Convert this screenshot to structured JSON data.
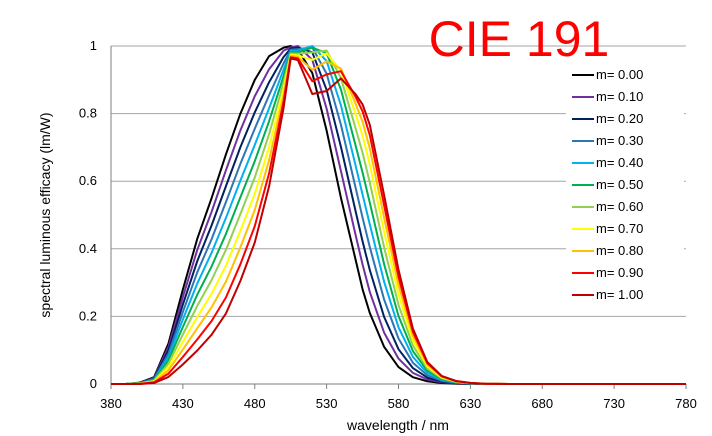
{
  "overlay_title": {
    "text": "CIE 191",
    "color": "#ff0000"
  },
  "chart_data": {
    "type": "line",
    "xlabel": "wavelength / nm",
    "ylabel": "spectral luminous efficacy (lm/W)",
    "xlim": [
      380,
      780
    ],
    "ylim": [
      0,
      1
    ],
    "xticks": [
      380,
      430,
      480,
      530,
      580,
      630,
      680,
      730,
      780
    ],
    "yticks": [
      0,
      0.2,
      0.4,
      0.6,
      0.8,
      1
    ],
    "ytick_labels": [
      "0",
      "0.2",
      "0.4",
      "0.6",
      "0.8",
      "1"
    ],
    "grid": "horizontal",
    "legend_position": "right",
    "x": [
      380,
      390,
      400,
      410,
      420,
      430,
      440,
      450,
      460,
      470,
      480,
      490,
      500,
      505,
      510,
      520,
      530,
      540,
      550,
      555,
      560,
      570,
      580,
      590,
      600,
      610,
      620,
      630,
      640,
      650,
      660,
      670,
      680,
      690,
      700,
      710,
      720,
      730,
      740,
      750,
      760,
      770,
      780
    ],
    "series": [
      {
        "name": "m= 0.00",
        "color": "#000000",
        "values": [
          0,
          0,
          0.004,
          0.02,
          0.12,
          0.28,
          0.43,
          0.55,
          0.68,
          0.8,
          0.9,
          0.97,
          0.995,
          1.0,
          0.99,
          0.92,
          0.75,
          0.55,
          0.37,
          0.28,
          0.21,
          0.11,
          0.05,
          0.02,
          0.008,
          0.003,
          0.001,
          0,
          0,
          0,
          0,
          0,
          0,
          0,
          0,
          0,
          0,
          0,
          0,
          0,
          0,
          0,
          0
        ]
      },
      {
        "name": "m= 0.10",
        "color": "#7030a0",
        "values": [
          0,
          0,
          0.0036,
          0.0183,
          0.1101,
          0.2578,
          0.3969,
          0.5096,
          0.6329,
          0.7505,
          0.8519,
          0.9315,
          0.9861,
          0.9963,
          1.0,
          0.9593,
          0.8147,
          0.6294,
          0.4431,
          0.3532,
          0.2724,
          0.1521,
          0.0751,
          0.0328,
          0.0132,
          0.005,
          0.0018,
          0.0006,
          0.0002,
          0,
          0,
          0,
          0,
          0,
          0,
          0,
          0,
          0,
          0,
          0,
          0,
          0,
          0
        ]
      },
      {
        "name": "m= 0.20",
        "color": "#002060",
        "values": [
          0,
          0,
          0.0032,
          0.0166,
          0.1002,
          0.2356,
          0.3638,
          0.4692,
          0.5858,
          0.701,
          0.8038,
          0.893,
          0.9672,
          0.9926,
          0.9954,
          0.9815,
          0.8704,
          0.7008,
          0.5137,
          0.4215,
          0.3373,
          0.1986,
          0.1031,
          0.0469,
          0.019,
          0.0073,
          0.0027,
          0.0009,
          0.0003,
          0,
          0,
          0,
          0,
          0,
          0,
          0,
          0,
          0,
          0,
          0,
          0,
          0,
          0
        ]
      },
      {
        "name": "m= 0.30",
        "color": "#2e75b6",
        "values": [
          0,
          0,
          0.0028,
          0.0149,
          0.0903,
          0.2134,
          0.3307,
          0.4288,
          0.5387,
          0.6515,
          0.7557,
          0.8545,
          0.9483,
          0.9889,
          0.9908,
          0.9956,
          0.9183,
          0.7663,
          0.5831,
          0.4917,
          0.4051,
          0.2501,
          0.1345,
          0.0631,
          0.0256,
          0.0097,
          0.0036,
          0.0013,
          0.0004,
          0.0001,
          0,
          0,
          0,
          0,
          0,
          0,
          0,
          0,
          0,
          0,
          0,
          0,
          0
        ]
      },
      {
        "name": "m= 0.40",
        "color": "#00b0f0",
        "values": [
          0,
          0,
          0.0024,
          0.0132,
          0.0804,
          0.1912,
          0.2976,
          0.3884,
          0.4916,
          0.602,
          0.7076,
          0.816,
          0.9294,
          0.9852,
          0.9862,
          1.0,
          0.9555,
          0.8237,
          0.6485,
          0.5605,
          0.4722,
          0.3027,
          0.1677,
          0.0802,
          0.0325,
          0.0122,
          0.0045,
          0.0016,
          0.0005,
          0.0001,
          0,
          0,
          0,
          0,
          0,
          0,
          0,
          0,
          0,
          0,
          0,
          0,
          0
        ]
      },
      {
        "name": "m= 0.50",
        "color": "#00b050",
        "values": [
          0,
          0,
          0.002,
          0.0115,
          0.0705,
          0.169,
          0.2645,
          0.348,
          0.4445,
          0.5525,
          0.6595,
          0.7775,
          0.9105,
          0.9815,
          0.9816,
          0.995,
          0.979,
          0.8705,
          0.7077,
          0.6252,
          0.5363,
          0.3546,
          0.2013,
          0.0973,
          0.0394,
          0.0148,
          0.0055,
          0.002,
          0.0006,
          0.0002,
          0,
          0,
          0,
          0,
          0,
          0,
          0,
          0,
          0,
          0,
          0,
          0,
          0
        ]
      },
      {
        "name": "m= 0.60",
        "color": "#92d050",
        "values": [
          0,
          0,
          0.0016,
          0.0098,
          0.0606,
          0.1468,
          0.2314,
          0.3076,
          0.3974,
          0.503,
          0.6114,
          0.739,
          0.8916,
          0.9778,
          0.977,
          0.981,
          0.9868,
          0.9048,
          0.7587,
          0.6838,
          0.596,
          0.4044,
          0.2341,
          0.1137,
          0.046,
          0.0173,
          0.0065,
          0.0023,
          0.0007,
          0.0002,
          0,
          0,
          0,
          0,
          0,
          0,
          0,
          0,
          0,
          0,
          0,
          0,
          0
        ]
      },
      {
        "name": "m= 0.70",
        "color": "#ffff00",
        "values": [
          0,
          0,
          0.0012,
          0.0081,
          0.0507,
          0.1246,
          0.1983,
          0.2672,
          0.3503,
          0.4535,
          0.5633,
          0.7005,
          0.8727,
          0.9741,
          0.9724,
          0.959,
          0.9785,
          0.926,
          0.8002,
          0.7344,
          0.65,
          0.4507,
          0.2651,
          0.129,
          0.052,
          0.0196,
          0.0074,
          0.0026,
          0.0008,
          0.0002,
          0,
          0,
          0,
          0,
          0,
          0,
          0,
          0,
          0,
          0,
          0,
          0,
          0
        ]
      },
      {
        "name": "m= 0.80",
        "color": "#ffc000",
        "values": [
          0,
          0,
          0.0008,
          0.0064,
          0.0408,
          0.1024,
          0.1652,
          0.2268,
          0.3032,
          0.404,
          0.5152,
          0.662,
          0.8538,
          0.9704,
          0.9678,
          0.93,
          0.9545,
          0.933,
          0.8312,
          0.7758,
          0.6971,
          0.4925,
          0.2932,
          0.1429,
          0.0573,
          0.0215,
          0.0081,
          0.0029,
          0.0009,
          0.0002,
          0,
          0,
          0,
          0,
          0,
          0,
          0,
          0,
          0,
          0,
          0,
          0,
          0
        ]
      },
      {
        "name": "m= 0.90",
        "color": "#ff0000",
        "values": [
          0,
          0,
          0.0004,
          0.0047,
          0.0309,
          0.0802,
          0.1321,
          0.1864,
          0.2561,
          0.3545,
          0.4671,
          0.6235,
          0.8349,
          0.9667,
          0.9632,
          0.896,
          0.916,
          0.9255,
          0.8508,
          0.8067,
          0.7363,
          0.529,
          0.3175,
          0.1548,
          0.0617,
          0.0231,
          0.0087,
          0.0031,
          0.0009,
          0.0002,
          0,
          0,
          0,
          0,
          0,
          0,
          0,
          0,
          0,
          0,
          0,
          0,
          0
        ]
      },
      {
        "name": "m= 1.00",
        "color": "#c00000",
        "values": [
          0,
          0,
          0.0001,
          0.003,
          0.021,
          0.058,
          0.099,
          0.146,
          0.209,
          0.305,
          0.419,
          0.585,
          0.816,
          0.963,
          0.9586,
          0.858,
          0.867,
          0.904,
          0.858,
          0.827,
          0.767,
          0.559,
          0.338,
          0.164,
          0.065,
          0.024,
          0.009,
          0.0032,
          0.0009,
          0.0002,
          0,
          0,
          0,
          0,
          0,
          0,
          0,
          0,
          0,
          0,
          0,
          0,
          0
        ]
      }
    ]
  }
}
